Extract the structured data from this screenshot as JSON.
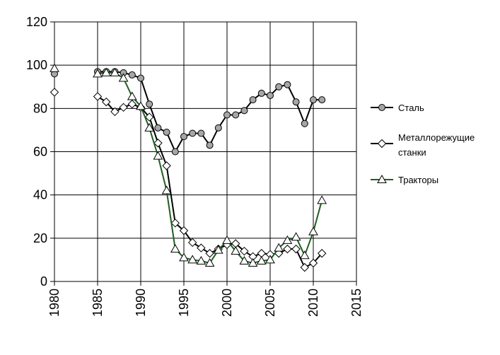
{
  "chart_data": {
    "type": "line",
    "title": "",
    "xlabel": "",
    "ylabel": "",
    "xlim": [
      1980,
      2015
    ],
    "ylim": [
      0,
      120
    ],
    "xticks": [
      1980,
      1985,
      1990,
      1995,
      2000,
      2005,
      2010,
      2015
    ],
    "yticks": [
      0,
      20,
      40,
      60,
      80,
      100,
      120
    ],
    "grid": true,
    "legend_position": "right",
    "series": [
      {
        "name": "Сталь",
        "marker": "circle",
        "color": "#000000",
        "marker_fill": "#a6a6a6",
        "points": [
          [
            1980,
            96
          ],
          [
            1985,
            97
          ],
          [
            1986,
            97
          ],
          [
            1987,
            97
          ],
          [
            1988,
            96.5
          ],
          [
            1989,
            95.5
          ],
          [
            1990,
            94
          ],
          [
            1991,
            82
          ],
          [
            1992,
            71
          ],
          [
            1993,
            69
          ],
          [
            1994,
            60
          ],
          [
            1995,
            67
          ],
          [
            1996,
            68.5
          ],
          [
            1997,
            68.5
          ],
          [
            1998,
            63
          ],
          [
            1999,
            71
          ],
          [
            2000,
            77
          ],
          [
            2001,
            77
          ],
          [
            2002,
            79
          ],
          [
            2003,
            84
          ],
          [
            2004,
            87
          ],
          [
            2005,
            86
          ],
          [
            2006,
            90
          ],
          [
            2007,
            91
          ],
          [
            2008,
            83
          ],
          [
            2009,
            73
          ],
          [
            2010,
            84
          ],
          [
            2011,
            84
          ]
        ]
      },
      {
        "name": "Металлорежущие станки",
        "legend_lines": [
          "Металлорежущие",
          "станки"
        ],
        "marker": "diamond",
        "color": "#000000",
        "marker_fill": "#ffffff",
        "points": [
          [
            1980,
            87.5
          ],
          [
            1985,
            85.5
          ],
          [
            1986,
            83
          ],
          [
            1987,
            78.5
          ],
          [
            1988,
            80.5
          ],
          [
            1989,
            82
          ],
          [
            1990,
            80.5
          ],
          [
            1991,
            76
          ],
          [
            1992,
            64
          ],
          [
            1993,
            53.5
          ],
          [
            1994,
            27
          ],
          [
            1995,
            23.5
          ],
          [
            1996,
            18
          ],
          [
            1997,
            15.5
          ],
          [
            1998,
            13
          ],
          [
            1999,
            15
          ],
          [
            2000,
            17
          ],
          [
            2001,
            17.5
          ],
          [
            2002,
            14
          ],
          [
            2003,
            11.5
          ],
          [
            2004,
            13
          ],
          [
            2005,
            12.5
          ],
          [
            2006,
            13
          ],
          [
            2007,
            15
          ],
          [
            2008,
            15
          ],
          [
            2009,
            6.5
          ],
          [
            2010,
            8.5
          ],
          [
            2011,
            13
          ]
        ]
      },
      {
        "name": "Тракторы",
        "marker": "triangle",
        "color": "#1f5f1f",
        "marker_fill": "#ffffff",
        "points": [
          [
            1980,
            98.5
          ],
          [
            1985,
            96
          ],
          [
            1986,
            96.5
          ],
          [
            1987,
            96.5
          ],
          [
            1988,
            94
          ],
          [
            1989,
            85.5
          ],
          [
            1990,
            81
          ],
          [
            1991,
            71
          ],
          [
            1992,
            58
          ],
          [
            1993,
            42
          ],
          [
            1994,
            15
          ],
          [
            1995,
            11
          ],
          [
            1996,
            10
          ],
          [
            1997,
            9.5
          ],
          [
            1998,
            8.5
          ],
          [
            1999,
            14.5
          ],
          [
            2000,
            19
          ],
          [
            2001,
            14
          ],
          [
            2002,
            9.5
          ],
          [
            2003,
            8.5
          ],
          [
            2004,
            9.5
          ],
          [
            2005,
            10
          ],
          [
            2006,
            15.5
          ],
          [
            2007,
            19
          ],
          [
            2008,
            20.5
          ],
          [
            2009,
            12
          ],
          [
            2010,
            23
          ],
          [
            2011,
            37.5
          ]
        ]
      }
    ]
  }
}
